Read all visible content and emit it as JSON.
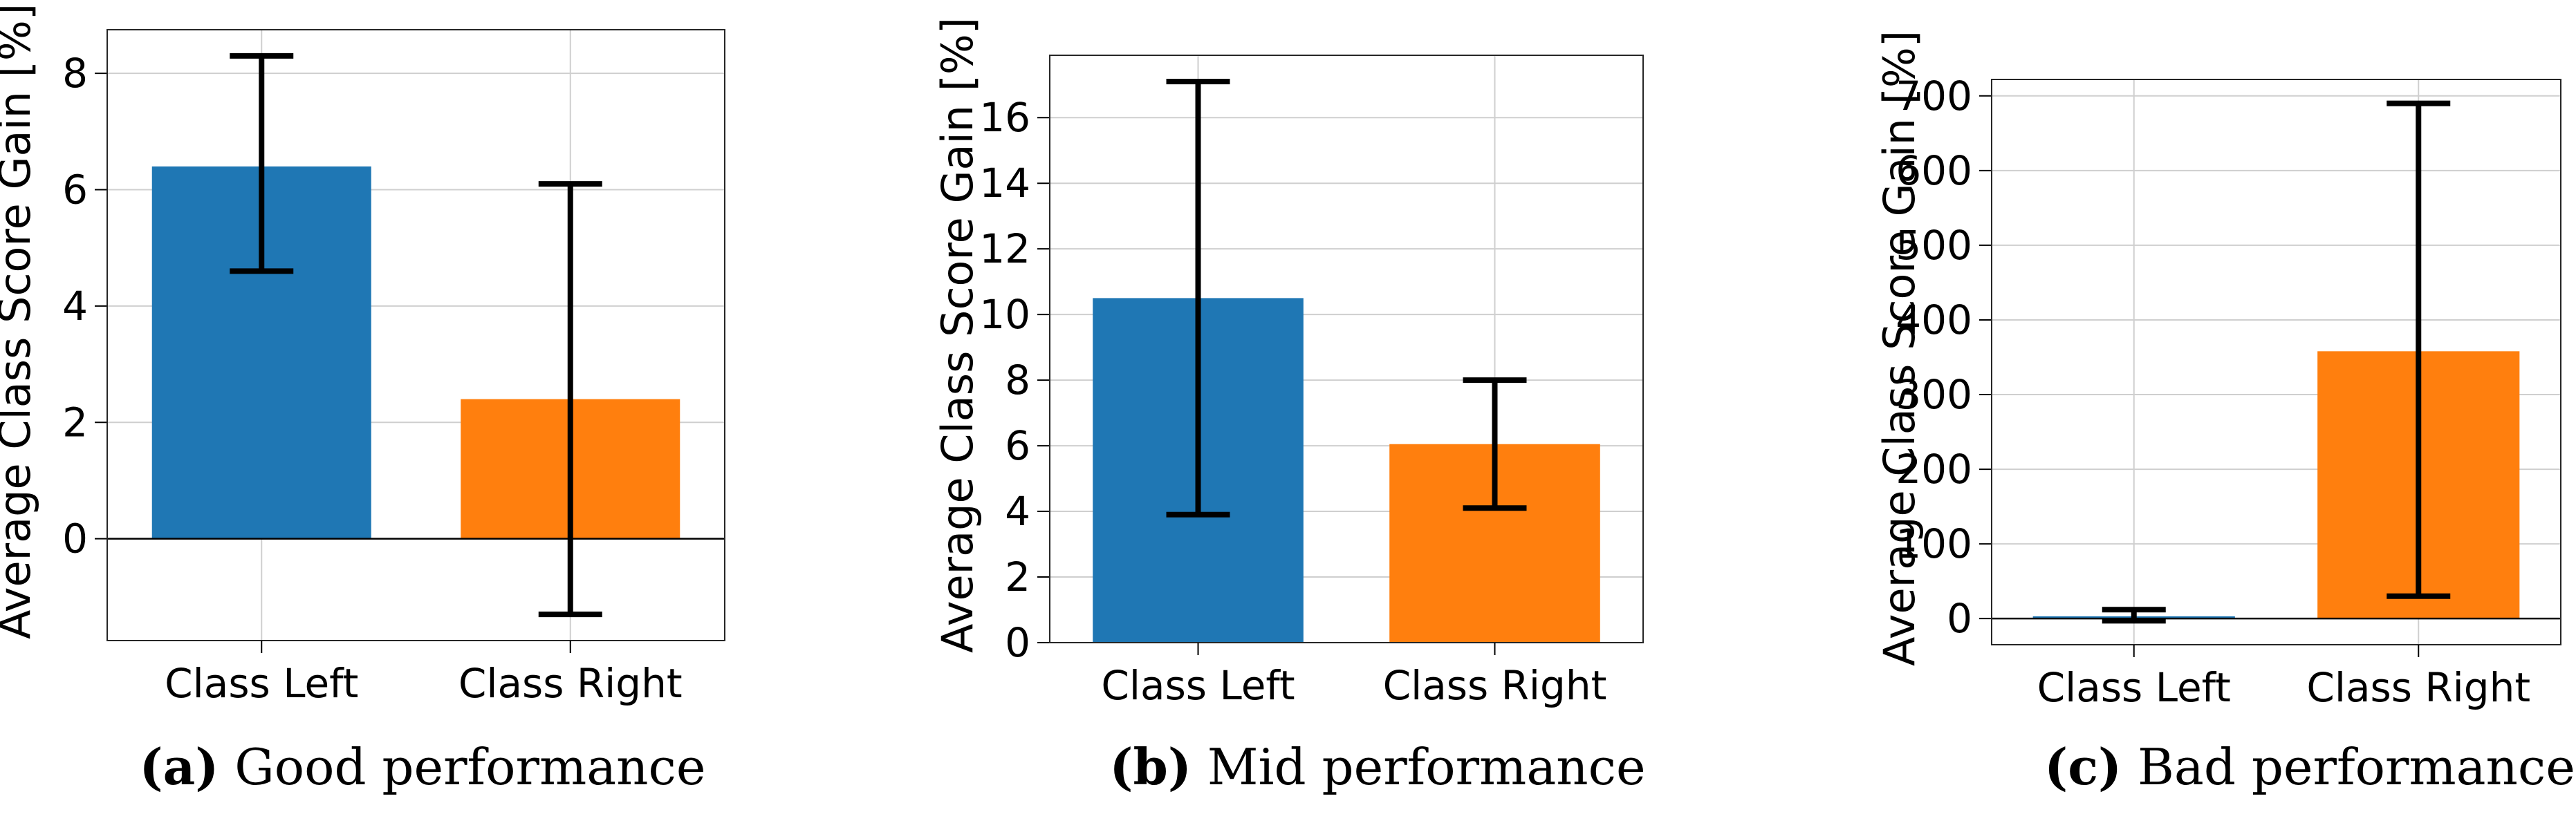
{
  "chart_data": [
    {
      "type": "bar",
      "categories": [
        "Class Left",
        "Class Right"
      ],
      "values": [
        6.4,
        2.4
      ],
      "error_low": [
        4.6,
        -1.3
      ],
      "error_high": [
        8.3,
        6.1
      ],
      "colors": [
        "#1f77b4",
        "#ff7f0e"
      ],
      "ylabel": "Average Class Score Gain [%]",
      "ylim": [
        -1.75,
        8.75
      ],
      "yticks": [
        0,
        2,
        4,
        6,
        8
      ],
      "grid": true,
      "caption_label": "(a)",
      "caption_text": "Good performance"
    },
    {
      "type": "bar",
      "categories": [
        "Class Left",
        "Class Right"
      ],
      "values": [
        10.5,
        6.05
      ],
      "error_low": [
        3.9,
        4.1
      ],
      "error_high": [
        17.1,
        8.0
      ],
      "colors": [
        "#1f77b4",
        "#ff7f0e"
      ],
      "ylabel": "Average Class Score Gain [%]",
      "ylim": [
        0,
        17.9
      ],
      "yticks": [
        0,
        2,
        4,
        6,
        8,
        10,
        12,
        14,
        16
      ],
      "grid": true,
      "caption_label": "(b)",
      "caption_text": "Mid performance"
    },
    {
      "type": "bar",
      "categories": [
        "Class Left",
        "Class Right"
      ],
      "values": [
        3,
        358
      ],
      "error_low": [
        -3,
        30
      ],
      "error_high": [
        12,
        690
      ],
      "colors": [
        "#1f77b4",
        "#ff7f0e"
      ],
      "ylabel": "Average Class Score Gain [%]",
      "ylim": [
        -35,
        722
      ],
      "yticks": [
        0,
        100,
        200,
        300,
        400,
        500,
        600,
        700
      ],
      "grid": true,
      "caption_label": "(c)",
      "caption_text": "Bad performance"
    }
  ]
}
